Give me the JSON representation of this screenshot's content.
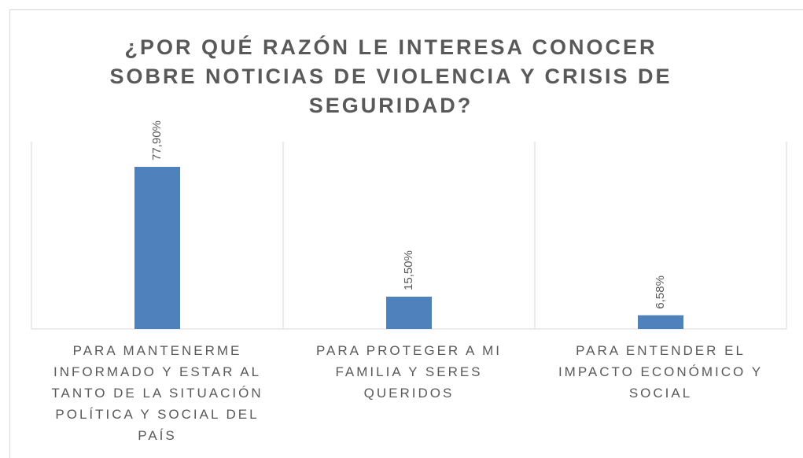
{
  "chart_data": {
    "type": "bar",
    "title": "¿POR QUÉ RAZÓN LE INTERESA CONOCER SOBRE NOTICIAS DE VIOLENCIA Y CRISIS DE SEGURIDAD?",
    "categories": [
      "PARA MANTENERME INFORMADO Y ESTAR AL TANTO DE LA SITUACIÓN POLÍTICA Y SOCIAL DEL PAÍS",
      "PARA PROTEGER A MI FAMILIA Y SERES QUERIDOS",
      "PARA ENTENDER EL IMPACTO ECONÓMICO Y SOCIAL"
    ],
    "values": [
      77.9,
      15.5,
      6.58
    ],
    "value_labels": [
      "77,90%",
      "15,50%",
      "6,58%"
    ],
    "color": "#4f81bd",
    "ylim": [
      0,
      90
    ]
  }
}
